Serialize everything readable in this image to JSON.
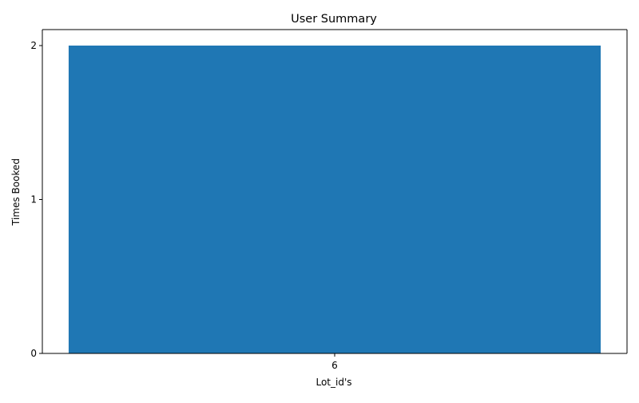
{
  "chart_data": {
    "type": "bar",
    "title": "User Summary",
    "xlabel": "Lot_id's",
    "ylabel": "Times Booked",
    "categories": [
      "6"
    ],
    "values": [
      2
    ],
    "ylim": [
      0,
      2
    ],
    "yticks": [
      "0",
      "1",
      "2"
    ],
    "grid": false,
    "legend": "none",
    "bar_color": "#1f77b4",
    "axis_color": "#000000",
    "background": "#ffffff"
  }
}
